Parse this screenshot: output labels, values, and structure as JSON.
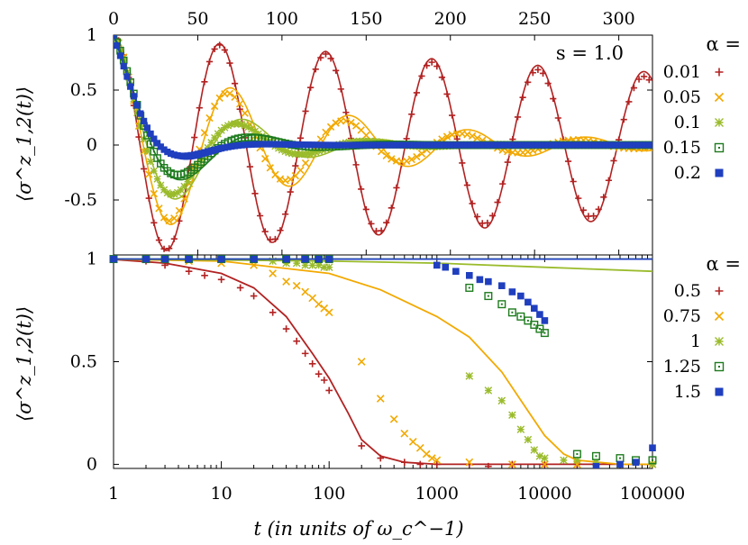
{
  "figure": {
    "xlabel": "t (in units of ω_c^−1)",
    "ylabel_top": "⟨σ^z_1,2(t)⟩",
    "ylabel_bottom": "⟨σ^z_1,2(t)⟩",
    "annotation_top": "s = 1.0",
    "legend_top_title": "α =",
    "legend_bottom_title": "α ="
  },
  "chart_data": [
    {
      "type": "line",
      "panel": "top",
      "xlim": [
        0,
        320
      ],
      "ylim": [
        -1,
        1
      ],
      "xticks": [
        0,
        50,
        100,
        150,
        200,
        250,
        300
      ],
      "yticks": [
        1,
        0.5,
        0,
        -0.5
      ],
      "ytick_labels": [
        "1",
        "0.5",
        "0",
        "-0.5"
      ],
      "annotation": "s = 1.0",
      "legend_title": "α =",
      "legend_position": "right",
      "grid": false,
      "series": [
        {
          "name": "0.01",
          "color": "#b22222",
          "marker": "plus",
          "damping": 0.0015,
          "period": 63,
          "lag": 0
        },
        {
          "name": "0.05",
          "color": "#f2a900",
          "marker": "cross",
          "damping": 0.011,
          "period": 69,
          "lag": 0
        },
        {
          "name": "0.1",
          "color": "#9abb2b",
          "marker": "star",
          "damping": 0.022,
          "period": 76,
          "lag": 0
        },
        {
          "name": "0.15",
          "color": "#1e7b1e",
          "marker": "open-box",
          "damping": 0.032,
          "period": 85,
          "lag": 1
        },
        {
          "name": "0.2",
          "color": "#1f3fbf",
          "marker": "filled-box",
          "damping": 0.05,
          "period": 100,
          "lag": 2
        }
      ]
    },
    {
      "type": "line",
      "panel": "bottom",
      "xscale": "log",
      "xlim": [
        1,
        100000
      ],
      "ylim": [
        -0.02,
        1.02
      ],
      "xticks": [
        1,
        10,
        100,
        1000,
        10000,
        100000
      ],
      "xtick_labels": [
        "1",
        "10",
        "100",
        "1000",
        "10000",
        "100000"
      ],
      "yticks": [
        1,
        0.5,
        0
      ],
      "ytick_labels": [
        "1",
        "0.5",
        "0"
      ],
      "legend_title": "α =",
      "legend_position": "right",
      "grid": false,
      "series": [
        {
          "name": "0.5",
          "color": "#b22222",
          "marker": "plus",
          "points": [
            [
              1,
              1
            ],
            [
              2,
              0.99
            ],
            [
              3,
              0.97
            ],
            [
              5,
              0.94
            ],
            [
              7,
              0.92
            ],
            [
              10,
              0.9
            ],
            [
              15,
              0.86
            ],
            [
              20,
              0.82
            ],
            [
              30,
              0.74
            ],
            [
              40,
              0.66
            ],
            [
              50,
              0.6
            ],
            [
              60,
              0.54
            ],
            [
              70,
              0.49
            ],
            [
              80,
              0.44
            ],
            [
              90,
              0.41
            ],
            [
              100,
              0.36
            ],
            [
              200,
              0.09
            ],
            [
              300,
              0.03
            ],
            [
              500,
              0.01
            ],
            [
              700,
              0.0
            ],
            [
              1000,
              0.0
            ],
            [
              2000,
              0.0
            ],
            [
              3000,
              -0.01
            ],
            [
              5000,
              0.0
            ],
            [
              10000,
              0.0
            ],
            [
              20000,
              0.0
            ],
            [
              50000,
              0.0
            ],
            [
              100000,
              0.0
            ]
          ],
          "curve": [
            [
              1,
              0.998
            ],
            [
              3,
              0.98
            ],
            [
              10,
              0.93
            ],
            [
              20,
              0.86
            ],
            [
              40,
              0.72
            ],
            [
              70,
              0.54
            ],
            [
              100,
              0.42
            ],
            [
              150,
              0.25
            ],
            [
              200,
              0.12
            ],
            [
              300,
              0.04
            ],
            [
              500,
              0.01
            ],
            [
              1000,
              0.0
            ],
            [
              100000,
              0.0
            ]
          ]
        },
        {
          "name": "0.75",
          "color": "#f2a900",
          "marker": "cross",
          "points": [
            [
              1,
              1
            ],
            [
              2,
              1
            ],
            [
              3,
              1
            ],
            [
              5,
              0.99
            ],
            [
              10,
              0.98
            ],
            [
              20,
              0.97
            ],
            [
              30,
              0.93
            ],
            [
              40,
              0.89
            ],
            [
              50,
              0.87
            ],
            [
              60,
              0.84
            ],
            [
              70,
              0.81
            ],
            [
              80,
              0.78
            ],
            [
              90,
              0.76
            ],
            [
              100,
              0.74
            ],
            [
              200,
              0.5
            ],
            [
              300,
              0.32
            ],
            [
              400,
              0.22
            ],
            [
              500,
              0.15
            ],
            [
              600,
              0.11
            ],
            [
              700,
              0.08
            ],
            [
              800,
              0.05
            ],
            [
              900,
              0.03
            ],
            [
              1000,
              0.02
            ],
            [
              2000,
              0.01
            ],
            [
              5000,
              0.0
            ],
            [
              10000,
              0.0
            ],
            [
              20000,
              0.0
            ],
            [
              50000,
              0.0
            ],
            [
              100000,
              0.0
            ]
          ],
          "curve": [
            [
              1,
              0.999
            ],
            [
              10,
              0.99
            ],
            [
              100,
              0.93
            ],
            [
              300,
              0.85
            ],
            [
              1000,
              0.72
            ],
            [
              2000,
              0.62
            ],
            [
              4000,
              0.45
            ],
            [
              7000,
              0.26
            ],
            [
              10000,
              0.14
            ],
            [
              15000,
              0.05
            ],
            [
              20000,
              0.02
            ],
            [
              50000,
              0.0
            ],
            [
              100000,
              0.0
            ]
          ]
        },
        {
          "name": "1",
          "color": "#9abb2b",
          "marker": "star",
          "points": [
            [
              1,
              1
            ],
            [
              2,
              1
            ],
            [
              3,
              1
            ],
            [
              5,
              1
            ],
            [
              10,
              1
            ],
            [
              20,
              1
            ],
            [
              30,
              0.99
            ],
            [
              40,
              0.98
            ],
            [
              50,
              0.98
            ],
            [
              60,
              0.97
            ],
            [
              70,
              0.97
            ],
            [
              80,
              0.97
            ],
            [
              90,
              0.96
            ],
            [
              100,
              0.96
            ],
            [
              2000,
              0.43
            ],
            [
              3000,
              0.36
            ],
            [
              4000,
              0.31
            ],
            [
              5000,
              0.24
            ],
            [
              6000,
              0.17
            ],
            [
              7000,
              0.12
            ],
            [
              8000,
              0.07
            ],
            [
              9000,
              0.04
            ],
            [
              10000,
              0.03
            ],
            [
              15000,
              0.02
            ],
            [
              20000,
              0.02
            ],
            [
              30000,
              0.01
            ],
            [
              50000,
              0.0
            ],
            [
              100000,
              0.0
            ]
          ],
          "curve": [
            [
              1,
              1.0
            ],
            [
              100,
              0.99
            ],
            [
              1000,
              0.98
            ],
            [
              10000,
              0.96
            ],
            [
              100000,
              0.94
            ]
          ]
        },
        {
          "name": "1.25",
          "color": "#1e7b1e",
          "marker": "open-box",
          "points": [
            [
              1,
              1
            ],
            [
              2,
              1
            ],
            [
              3,
              1
            ],
            [
              5,
              1
            ],
            [
              10,
              1
            ],
            [
              20,
              1
            ],
            [
              40,
              1
            ],
            [
              60,
              1
            ],
            [
              80,
              1
            ],
            [
              100,
              1
            ],
            [
              2000,
              0.86
            ],
            [
              3000,
              0.82
            ],
            [
              4000,
              0.78
            ],
            [
              5000,
              0.74
            ],
            [
              6000,
              0.72
            ],
            [
              7000,
              0.7
            ],
            [
              8000,
              0.68
            ],
            [
              9000,
              0.66
            ],
            [
              10000,
              0.64
            ],
            [
              20000,
              0.05
            ],
            [
              30000,
              0.04
            ],
            [
              50000,
              0.03
            ],
            [
              70000,
              0.02
            ],
            [
              100000,
              0.02
            ]
          ],
          "curve": [
            [
              1,
              1.0
            ],
            [
              100000,
              1.0
            ]
          ]
        },
        {
          "name": "1.5",
          "color": "#1f3fbf",
          "marker": "filled-box",
          "points": [
            [
              1,
              1
            ],
            [
              2,
              1
            ],
            [
              3,
              1
            ],
            [
              5,
              1
            ],
            [
              10,
              1
            ],
            [
              20,
              1
            ],
            [
              40,
              1
            ],
            [
              60,
              1
            ],
            [
              80,
              1
            ],
            [
              100,
              1
            ],
            [
              1000,
              0.97
            ],
            [
              1200,
              0.96
            ],
            [
              1500,
              0.94
            ],
            [
              2000,
              0.92
            ],
            [
              2500,
              0.9
            ],
            [
              3000,
              0.89
            ],
            [
              4000,
              0.87
            ],
            [
              5000,
              0.84
            ],
            [
              6000,
              0.82
            ],
            [
              7000,
              0.79
            ],
            [
              8000,
              0.76
            ],
            [
              9000,
              0.73
            ],
            [
              10000,
              0.7
            ],
            [
              30000,
              -0.01
            ],
            [
              50000,
              0.0
            ],
            [
              70000,
              0.01
            ],
            [
              100000,
              0.08
            ]
          ],
          "curve": [
            [
              1,
              1.0
            ],
            [
              100000,
              1.0
            ]
          ]
        }
      ]
    }
  ]
}
